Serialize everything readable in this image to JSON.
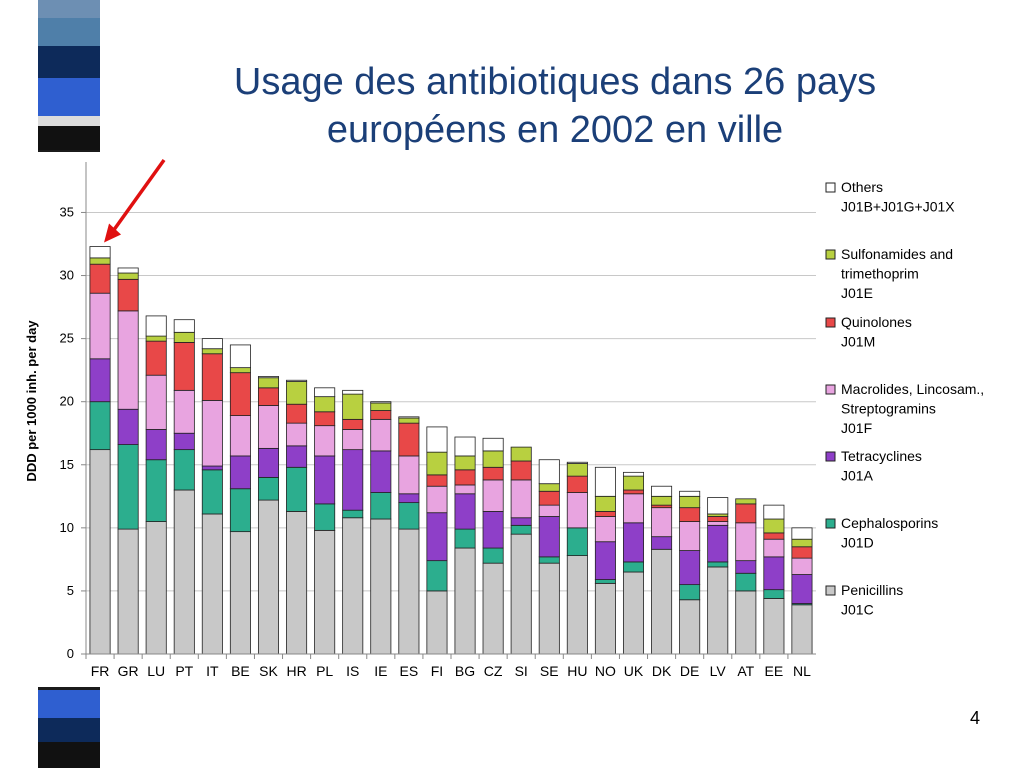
{
  "slide": {
    "title_line1": "Usage des antibiotiques dans 26 pays",
    "title_line2": "européens en 2002 en ville",
    "page_number": "4",
    "title_color": "#1b3f78"
  },
  "arrow": {
    "color": "#e01010",
    "points_to": "FR"
  },
  "chart_data": {
    "type": "bar",
    "stacked": true,
    "ylabel": "DDD per 1000 inh. per day",
    "xlabel": "",
    "ylim": [
      0,
      39
    ],
    "yticks": [
      0,
      5,
      10,
      15,
      20,
      25,
      30,
      35
    ],
    "grid": true,
    "legend_position": "right",
    "categories": [
      "FR",
      "GR",
      "LU",
      "PT",
      "IT",
      "BE",
      "SK",
      "HR",
      "PL",
      "IS",
      "IE",
      "ES",
      "FI",
      "BG",
      "CZ",
      "SI",
      "SE",
      "HU",
      "NO",
      "UK",
      "DK",
      "DE",
      "LV",
      "AT",
      "EE",
      "NL"
    ],
    "series": [
      {
        "name": "Penicillins",
        "code": "J01C",
        "color": "#c8c8c8",
        "values": [
          16.2,
          9.9,
          10.5,
          13.0,
          11.1,
          9.7,
          12.2,
          11.3,
          9.8,
          10.8,
          10.7,
          9.9,
          5.0,
          8.4,
          7.2,
          9.5,
          7.2,
          7.8,
          5.6,
          6.5,
          8.3,
          4.3,
          6.9,
          5.0,
          4.4,
          3.9
        ]
      },
      {
        "name": "Cephalosporins",
        "code": "J01D",
        "color": "#2cae8e",
        "values": [
          3.8,
          6.7,
          4.9,
          3.2,
          3.5,
          3.4,
          1.8,
          3.5,
          2.1,
          0.6,
          2.1,
          2.1,
          2.4,
          1.5,
          1.2,
          0.7,
          0.5,
          2.2,
          0.3,
          0.8,
          0.0,
          1.2,
          0.4,
          1.4,
          0.7,
          0.1
        ]
      },
      {
        "name": "Tetracyclines",
        "code": "J01A",
        "color": "#8e3fc8",
        "values": [
          3.4,
          2.8,
          2.4,
          1.3,
          0.3,
          2.6,
          2.3,
          1.7,
          3.8,
          4.8,
          3.3,
          0.7,
          3.8,
          2.8,
          2.9,
          0.6,
          3.2,
          0.0,
          3.0,
          3.1,
          1.0,
          2.7,
          2.9,
          1.0,
          2.6,
          2.3
        ]
      },
      {
        "name": "Macrolides, Lincosam., Streptogramins",
        "code": "J01F",
        "color": "#e8a4e0",
        "values": [
          5.2,
          7.8,
          4.3,
          3.4,
          5.2,
          3.2,
          3.4,
          1.8,
          2.4,
          1.6,
          2.5,
          3.0,
          2.1,
          0.7,
          2.5,
          3.0,
          0.9,
          2.8,
          2.0,
          2.3,
          2.3,
          2.3,
          0.3,
          3.0,
          1.4,
          1.3
        ]
      },
      {
        "name": "Quinolones",
        "code": "J01M",
        "color": "#e84848",
        "values": [
          2.3,
          2.5,
          2.7,
          3.8,
          3.7,
          3.4,
          1.4,
          1.5,
          1.1,
          0.8,
          0.7,
          2.6,
          0.9,
          1.2,
          1.0,
          1.5,
          1.1,
          1.3,
          0.4,
          0.3,
          0.2,
          1.1,
          0.4,
          1.5,
          0.5,
          0.9
        ]
      },
      {
        "name": "Sulfonamides and trimethoprim",
        "code": "J01E",
        "color": "#b8d040",
        "values": [
          0.5,
          0.5,
          0.4,
          0.8,
          0.4,
          0.4,
          0.8,
          1.8,
          1.2,
          2.0,
          0.6,
          0.4,
          1.8,
          1.1,
          1.3,
          1.1,
          0.6,
          1.0,
          1.2,
          1.1,
          0.7,
          0.9,
          0.2,
          0.4,
          1.1,
          0.6
        ]
      },
      {
        "name": "Others",
        "code": "J01B+J01G+J01X",
        "color": "#ffffff",
        "values": [
          0.9,
          0.4,
          1.6,
          1.0,
          0.8,
          1.8,
          0.1,
          0.1,
          0.7,
          0.3,
          0.1,
          0.1,
          2.0,
          1.5,
          1.0,
          0.0,
          1.9,
          0.1,
          2.3,
          0.3,
          0.8,
          0.4,
          1.3,
          0.0,
          1.1,
          0.9
        ]
      }
    ],
    "legend": [
      {
        "lines": [
          "Others",
          "J01B+J01G+J01X"
        ],
        "series_index": 6
      },
      {
        "lines": [
          "Sulfonamides and",
          "trimethoprim",
          " J01E"
        ],
        "series_index": 5
      },
      {
        "lines": [
          "Quinolones",
          "J01M"
        ],
        "series_index": 4
      },
      {
        "lines": [
          "Macrolides, Lincosam.,",
          "Streptogramins",
          " J01F"
        ],
        "series_index": 3
      },
      {
        "lines": [
          "Tetracyclines",
          " J01A"
        ],
        "series_index": 2
      },
      {
        "lines": [
          "Cephalosporins",
          "J01D"
        ],
        "series_index": 1
      },
      {
        "lines": [
          "Penicillins",
          " J01C"
        ],
        "series_index": 0
      }
    ]
  }
}
